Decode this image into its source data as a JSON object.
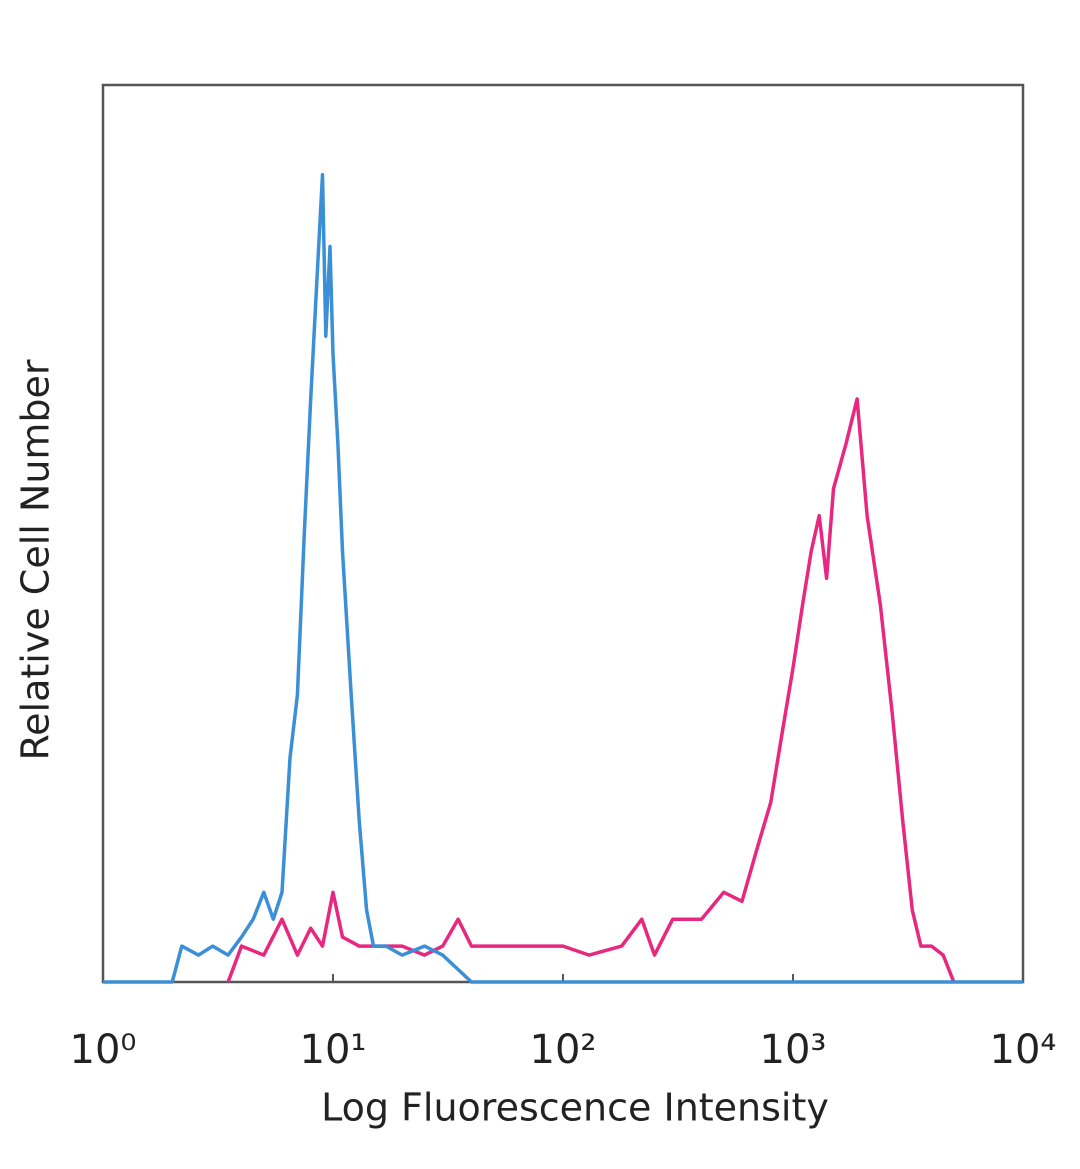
{
  "chart_data": {
    "type": "line",
    "xlabel": "Log Fluorescence Intensity",
    "ylabel": "Relative Cell Number",
    "xscale": "log",
    "xlim": [
      1,
      10000
    ],
    "ylim": [
      0,
      100
    ],
    "xticks": [
      {
        "value": 1,
        "label": "10⁰"
      },
      {
        "value": 10,
        "label": "10¹"
      },
      {
        "value": 100,
        "label": "10²"
      },
      {
        "value": 1000,
        "label": "10³"
      },
      {
        "value": 10000,
        "label": "10⁴"
      }
    ],
    "series": [
      {
        "color": "#3a8fd6",
        "x": [
          1,
          2.0,
          2.2,
          2.6,
          3.0,
          3.5,
          4.0,
          4.5,
          5.0,
          5.5,
          6.0,
          6.5,
          7.0,
          7.5,
          8.0,
          8.5,
          9.0,
          9.3,
          9.7,
          10.0,
          10.5,
          11.0,
          12.0,
          13.0,
          14.0,
          15.0,
          17,
          20,
          25,
          30,
          40,
          10000
        ],
        "values": [
          0,
          0,
          4,
          3,
          4,
          3,
          5,
          7,
          10,
          7,
          10,
          25,
          32,
          50,
          65,
          78,
          90,
          72,
          82,
          70,
          60,
          48,
          32,
          18,
          8,
          4,
          4,
          3,
          4,
          3,
          0,
          0
        ]
      },
      {
        "color": "#e8287f",
        "x": [
          3.5,
          4,
          5,
          6,
          7,
          8,
          9,
          10,
          11,
          13,
          16,
          20,
          25,
          30,
          35,
          40,
          50,
          60,
          80,
          100,
          130,
          180,
          220,
          250,
          300,
          400,
          500,
          600,
          700,
          800,
          900,
          1000,
          1100,
          1200,
          1300,
          1400,
          1500,
          1700,
          1900,
          2100,
          2400,
          2700,
          3000,
          3300,
          3600,
          4000,
          4500,
          5000
        ],
        "values": [
          0,
          4,
          3,
          7,
          3,
          6,
          4,
          10,
          5,
          4,
          4,
          4,
          3,
          4,
          7,
          4,
          4,
          4,
          4,
          4,
          3,
          4,
          7,
          3,
          7,
          7,
          10,
          9,
          15,
          20,
          28,
          35,
          42,
          48,
          52,
          45,
          55,
          60,
          65,
          52,
          42,
          30,
          18,
          8,
          4,
          4,
          3,
          0
        ]
      }
    ]
  }
}
